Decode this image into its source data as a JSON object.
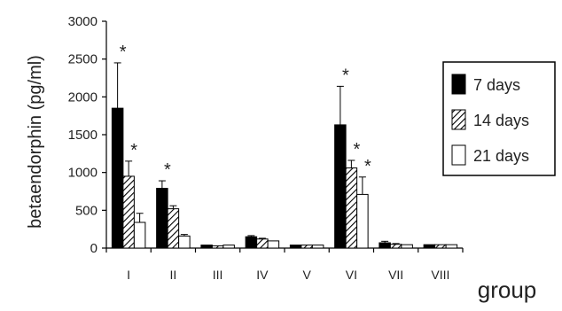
{
  "chart_data": {
    "type": "bar",
    "title": "",
    "xlabel": "group",
    "ylabel": "betaendorphin (pg/ml)",
    "ylim": [
      0,
      3000
    ],
    "yticks": [
      "0",
      "500",
      "1000",
      "1500",
      "2000",
      "2500",
      "3000"
    ],
    "categories": [
      "I",
      "II",
      "III",
      "IV",
      "V",
      "VI",
      "VII",
      "VIII"
    ],
    "legend_position": "right",
    "series": [
      {
        "name": "7 days",
        "fill": "solid-black",
        "values": [
          1850,
          790,
          40,
          150,
          40,
          1630,
          70,
          45
        ],
        "errors": [
          600,
          100,
          0,
          15,
          0,
          510,
          20,
          0
        ],
        "significant": [
          true,
          true,
          false,
          false,
          false,
          true,
          false,
          false
        ]
      },
      {
        "name": "14 days",
        "fill": "hatched",
        "values": [
          950,
          520,
          30,
          120,
          40,
          1060,
          50,
          45
        ],
        "errors": [
          200,
          40,
          0,
          10,
          0,
          100,
          10,
          0
        ],
        "significant": [
          true,
          false,
          false,
          false,
          false,
          true,
          false,
          false
        ]
      },
      {
        "name": "21 days",
        "fill": "white",
        "values": [
          340,
          160,
          40,
          95,
          40,
          710,
          45,
          45
        ],
        "errors": [
          120,
          20,
          0,
          0,
          0,
          230,
          0,
          0
        ],
        "significant": [
          false,
          false,
          false,
          false,
          false,
          true,
          false,
          false
        ]
      }
    ],
    "annotation_symbol": "*"
  }
}
